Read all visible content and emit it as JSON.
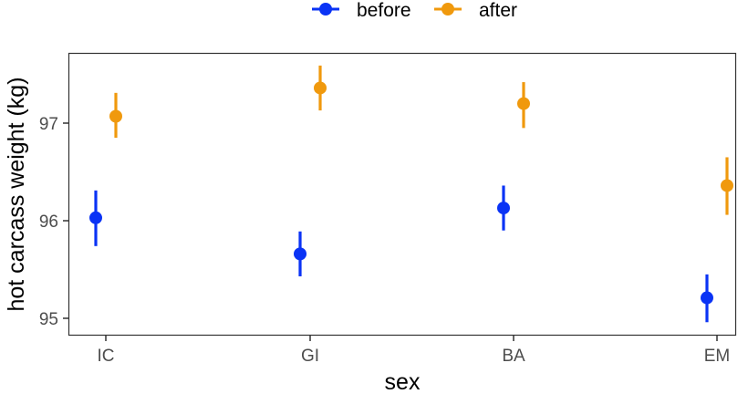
{
  "chart_data": {
    "type": "scatter",
    "subtype": "point-range",
    "title": "",
    "xlabel": "sex",
    "ylabel": "hot carcass weight (kg)",
    "categories": [
      "IC",
      "GI",
      "BA",
      "EM"
    ],
    "yticks": [
      95,
      96,
      97
    ],
    "ylim": [
      94.8,
      97.7
    ],
    "grid": false,
    "legend": {
      "position": "top",
      "entries": [
        "before",
        "after"
      ]
    },
    "series": [
      {
        "name": "before",
        "color": "#0a33f5",
        "values": [
          96.03,
          95.66,
          96.13,
          95.21
        ],
        "lower": [
          95.74,
          95.43,
          95.9,
          94.96
        ],
        "upper": [
          96.31,
          95.89,
          96.36,
          95.45
        ]
      },
      {
        "name": "after",
        "color": "#f0990d",
        "values": [
          97.07,
          97.36,
          97.2,
          96.36
        ],
        "lower": [
          96.85,
          97.13,
          96.95,
          96.06
        ],
        "upper": [
          97.31,
          97.59,
          97.42,
          96.65
        ]
      }
    ]
  },
  "legend": {
    "items": [
      {
        "label": "before",
        "color": "#0a33f5"
      },
      {
        "label": "after",
        "color": "#f0990d"
      }
    ]
  },
  "axes": {
    "x_title": "sex",
    "y_title": "hot carcass weight (kg)",
    "x_ticks": [
      "IC",
      "GI",
      "BA",
      "EM"
    ],
    "y_ticks": [
      "95",
      "96",
      "97"
    ]
  }
}
